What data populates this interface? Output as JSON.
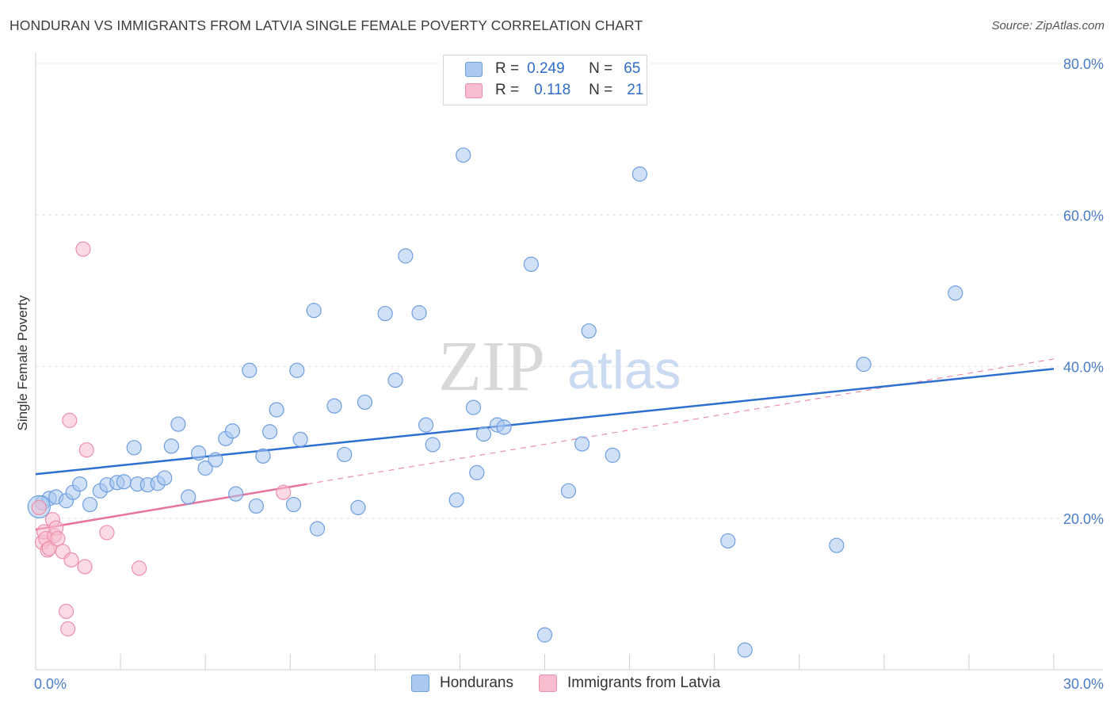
{
  "title": "HONDURAN VS IMMIGRANTS FROM LATVIA SINGLE FEMALE POVERTY CORRELATION CHART",
  "source": "Source: ZipAtlas.com",
  "watermark": {
    "zip": "ZIP",
    "atlas": "atlas"
  },
  "colors": {
    "blue_fill": "#aac8f0",
    "blue_stroke": "#6e9ee0",
    "blue_line": "#2f6fd0",
    "pink_fill": "#f7bccd",
    "pink_stroke": "#ec8fab",
    "pink_line": "#e8739b",
    "tick_text": "#4a7cc9",
    "grid": "#e4e4e4"
  },
  "legend": {
    "rows": [
      {
        "r_label": "R =",
        "r_value": "0.249",
        "n_label": "N =",
        "n_value": "65"
      },
      {
        "r_label": "R =",
        "r_value": "0.118",
        "n_label": "N =",
        "n_value": "21"
      }
    ]
  },
  "bottom_legend": {
    "series1": "Hondurans",
    "series2": "Immigrants from Latvia"
  },
  "chart_data": {
    "type": "scatter",
    "title": "HONDURAN VS IMMIGRANTS FROM LATVIA SINGLE FEMALE POVERTY CORRELATION CHART",
    "ylabel": "Single Female Poverty",
    "xlim": [
      0,
      30
    ],
    "ylim": [
      0,
      80
    ],
    "x_tick_labels": [
      "0.0%",
      "30.0%"
    ],
    "y_tick_labels": [
      "20.0%",
      "40.0%",
      "60.0%",
      "80.0%"
    ],
    "y_ticks": [
      20,
      40,
      60,
      80
    ],
    "grid": true,
    "legend_position": "top-center",
    "series": [
      {
        "name": "Hondurans",
        "r": 0.249,
        "n": 65,
        "trend": {
          "x": [
            0,
            30
          ],
          "y": [
            25.8,
            39.7
          ],
          "style": "solid"
        },
        "points": [
          [
            0.2,
            22.0
          ],
          [
            0.4,
            22.6
          ],
          [
            0.6,
            22.8
          ],
          [
            0.9,
            22.3
          ],
          [
            1.1,
            23.4
          ],
          [
            1.3,
            24.5
          ],
          [
            1.6,
            21.8
          ],
          [
            1.9,
            23.6
          ],
          [
            2.1,
            24.4
          ],
          [
            2.4,
            24.7
          ],
          [
            2.6,
            24.8
          ],
          [
            2.9,
            29.3
          ],
          [
            3.0,
            24.5
          ],
          [
            3.3,
            24.4
          ],
          [
            3.6,
            24.6
          ],
          [
            3.8,
            25.3
          ],
          [
            4.0,
            29.5
          ],
          [
            4.2,
            32.4
          ],
          [
            4.5,
            22.8
          ],
          [
            4.8,
            28.6
          ],
          [
            5.0,
            26.6
          ],
          [
            5.3,
            27.7
          ],
          [
            5.6,
            30.5
          ],
          [
            5.8,
            31.5
          ],
          [
            5.9,
            23.2
          ],
          [
            6.3,
            39.5
          ],
          [
            6.5,
            21.6
          ],
          [
            6.7,
            28.2
          ],
          [
            6.9,
            31.4
          ],
          [
            7.1,
            34.3
          ],
          [
            7.6,
            21.8
          ],
          [
            7.7,
            39.5
          ],
          [
            7.8,
            30.4
          ],
          [
            8.2,
            47.4
          ],
          [
            8.3,
            18.6
          ],
          [
            8.8,
            34.8
          ],
          [
            9.1,
            28.4
          ],
          [
            9.5,
            21.4
          ],
          [
            9.7,
            35.3
          ],
          [
            10.3,
            47.0
          ],
          [
            10.6,
            38.2
          ],
          [
            10.9,
            54.6
          ],
          [
            11.3,
            47.1
          ],
          [
            11.5,
            32.3
          ],
          [
            11.7,
            29.7
          ],
          [
            12.4,
            22.4
          ],
          [
            12.6,
            67.9
          ],
          [
            12.9,
            34.6
          ],
          [
            13.0,
            26.0
          ],
          [
            13.2,
            31.1
          ],
          [
            13.6,
            32.3
          ],
          [
            13.8,
            32.0
          ],
          [
            14.6,
            53.5
          ],
          [
            15.0,
            4.6
          ],
          [
            15.7,
            23.6
          ],
          [
            16.1,
            29.8
          ],
          [
            16.3,
            44.7
          ],
          [
            17.0,
            28.3
          ],
          [
            17.8,
            65.4
          ],
          [
            20.4,
            17.0
          ],
          [
            20.9,
            2.6
          ],
          [
            23.6,
            16.4
          ],
          [
            24.4,
            40.3
          ],
          [
            27.1,
            49.7
          ],
          [
            0.1,
            21.5
          ]
        ]
      },
      {
        "name": "Immigrants from Latvia",
        "r": 0.118,
        "n": 21,
        "trend": {
          "x": [
            0,
            8.0
          ],
          "y": [
            18.5,
            24.5
          ],
          "style": "solid",
          "extended_to": [
            30,
            41.0
          ],
          "extended_style": "dashed"
        },
        "points": [
          [
            0.1,
            21.4
          ],
          [
            0.2,
            16.8
          ],
          [
            0.25,
            18.2
          ],
          [
            0.3,
            17.3
          ],
          [
            0.35,
            15.8
          ],
          [
            0.4,
            16.0
          ],
          [
            0.5,
            19.8
          ],
          [
            0.55,
            17.7
          ],
          [
            0.6,
            18.7
          ],
          [
            0.65,
            17.3
          ],
          [
            0.8,
            15.6
          ],
          [
            0.9,
            7.7
          ],
          [
            0.95,
            5.4
          ],
          [
            1.0,
            32.9
          ],
          [
            1.05,
            14.5
          ],
          [
            1.4,
            55.5
          ],
          [
            1.45,
            13.6
          ],
          [
            1.5,
            29.0
          ],
          [
            2.1,
            18.1
          ],
          [
            3.05,
            13.4
          ],
          [
            7.3,
            23.4
          ]
        ]
      }
    ]
  }
}
